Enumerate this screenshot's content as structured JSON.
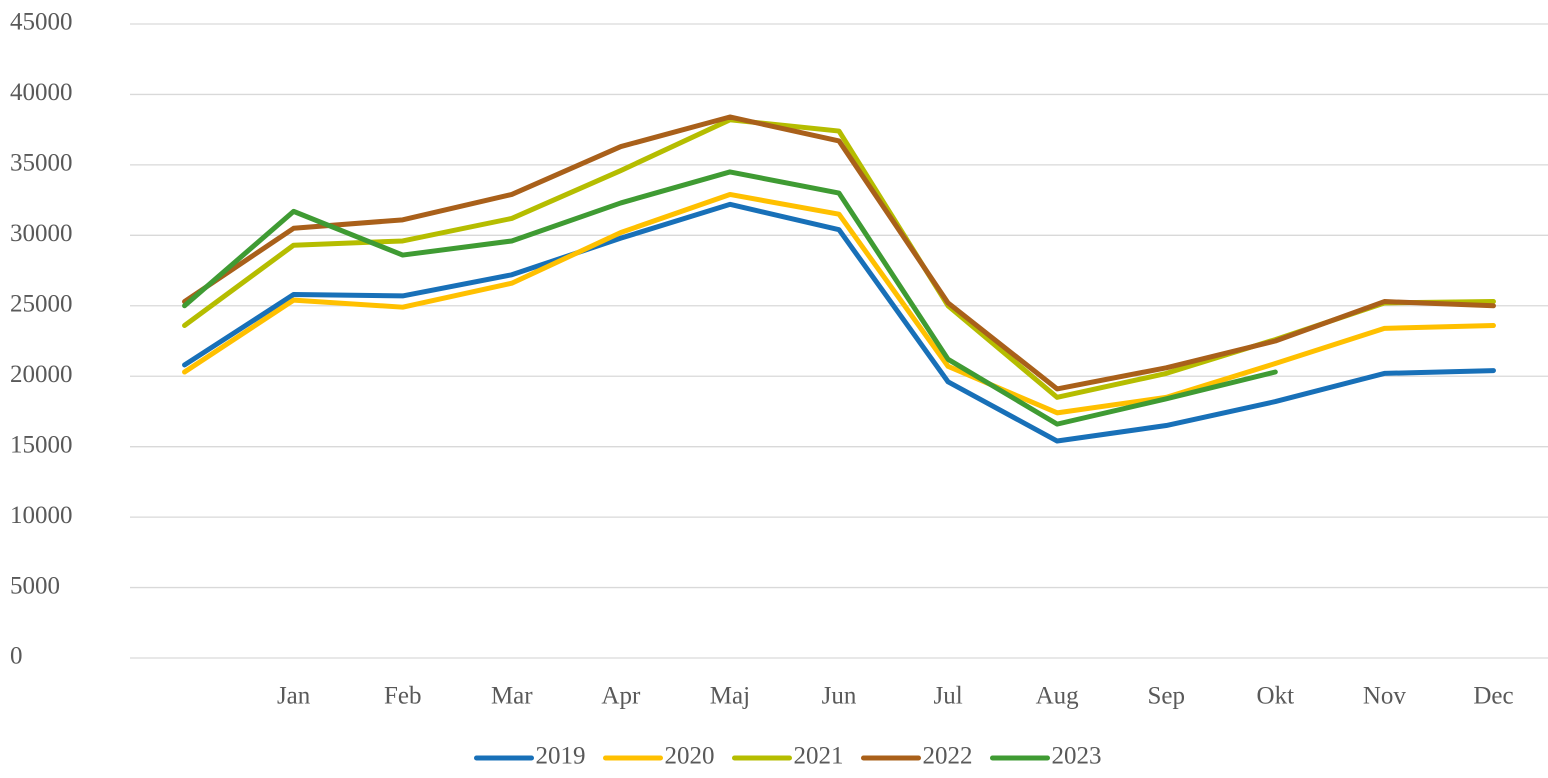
{
  "chart_data": {
    "type": "line",
    "categories": [
      null,
      "Jan",
      "Feb",
      "Mar",
      "Apr",
      "Maj",
      "Jun",
      "Jul",
      "Aug",
      "Sep",
      "Okt",
      "Nov",
      "Dec"
    ],
    "series": [
      {
        "name": "2019",
        "color": "#1870b8",
        "values": [
          20800,
          25800,
          25700,
          27200,
          29800,
          32200,
          30400,
          19600,
          15400,
          16500,
          18200,
          20200,
          20400
        ]
      },
      {
        "name": "2020",
        "color": "#ffc000",
        "values": [
          20300,
          25400,
          24900,
          26600,
          30200,
          32900,
          31500,
          20700,
          17400,
          18500,
          20900,
          23400,
          23600
        ]
      },
      {
        "name": "2021",
        "color": "#b5bd00",
        "values": [
          23600,
          29300,
          29600,
          31200,
          34600,
          38200,
          37400,
          25000,
          18500,
          20200,
          22600,
          25200,
          25300
        ]
      },
      {
        "name": "2022",
        "color": "#a9601a",
        "values": [
          25300,
          30500,
          31100,
          32900,
          36300,
          38400,
          36700,
          25200,
          19100,
          20600,
          22500,
          25300,
          25000
        ]
      },
      {
        "name": "2023",
        "color": "#3f9b33",
        "values": [
          25000,
          31700,
          28600,
          29600,
          32300,
          34500,
          33000,
          21200,
          16600,
          18400,
          20300,
          null,
          null
        ]
      }
    ],
    "ylim": [
      0,
      45000
    ],
    "yticks": [
      0,
      5000,
      10000,
      15000,
      20000,
      25000,
      30000,
      35000,
      40000,
      45000
    ],
    "grid": true,
    "legend": "bottom"
  }
}
